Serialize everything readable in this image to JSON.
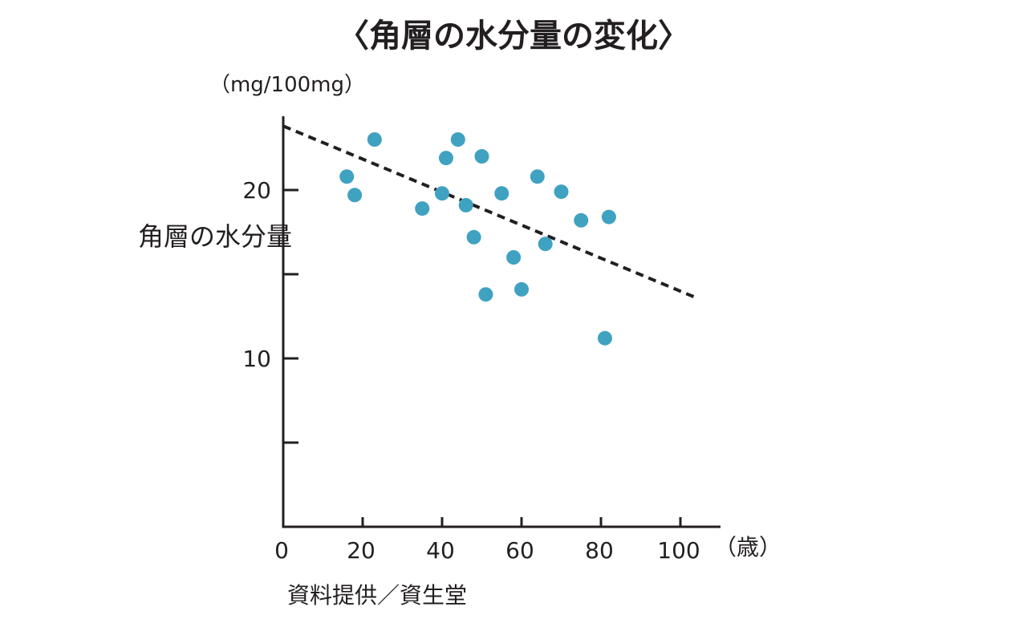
{
  "chart_data": {
    "type": "scatter",
    "title": "〈角層の水分量の変化〉",
    "unit_label": "（mg/100mg）",
    "ylabel": "角層の水分量",
    "xlabel": "",
    "x_unit_label": "（歳）",
    "source": "資料提供／資生堂",
    "xlim": [
      0,
      110
    ],
    "ylim": [
      0,
      25
    ],
    "x_ticks": [
      {
        "value": 0,
        "label": "0"
      },
      {
        "value": 20,
        "label": "20"
      },
      {
        "value": 40,
        "label": "40"
      },
      {
        "value": 60,
        "label": "60"
      },
      {
        "value": 80,
        "label": "80"
      },
      {
        "value": 100,
        "label": "100"
      }
    ],
    "y_ticks": [
      {
        "value": 5,
        "label": ""
      },
      {
        "value": 10,
        "label": "10"
      },
      {
        "value": 15,
        "label": ""
      },
      {
        "value": 20,
        "label": "20"
      }
    ],
    "points": [
      {
        "x": 16,
        "y": 20.8
      },
      {
        "x": 18,
        "y": 19.7
      },
      {
        "x": 23,
        "y": 23.0
      },
      {
        "x": 35,
        "y": 18.9
      },
      {
        "x": 40,
        "y": 19.8
      },
      {
        "x": 41,
        "y": 21.9
      },
      {
        "x": 44,
        "y": 23.0
      },
      {
        "x": 46,
        "y": 19.1
      },
      {
        "x": 48,
        "y": 17.2
      },
      {
        "x": 50,
        "y": 22.0
      },
      {
        "x": 51,
        "y": 13.8
      },
      {
        "x": 55,
        "y": 19.8
      },
      {
        "x": 58,
        "y": 16.0
      },
      {
        "x": 60,
        "y": 14.1
      },
      {
        "x": 64,
        "y": 20.8
      },
      {
        "x": 66,
        "y": 16.8
      },
      {
        "x": 70,
        "y": 19.9
      },
      {
        "x": 75,
        "y": 18.2
      },
      {
        "x": 81,
        "y": 11.2
      },
      {
        "x": 82,
        "y": 18.4
      }
    ],
    "trendline": {
      "x": [
        0,
        104
      ],
      "y": [
        23.8,
        13.6
      ]
    },
    "point_color": "#3fa2c0",
    "axis_color": "#231f20",
    "grid": false,
    "legend": "none"
  }
}
